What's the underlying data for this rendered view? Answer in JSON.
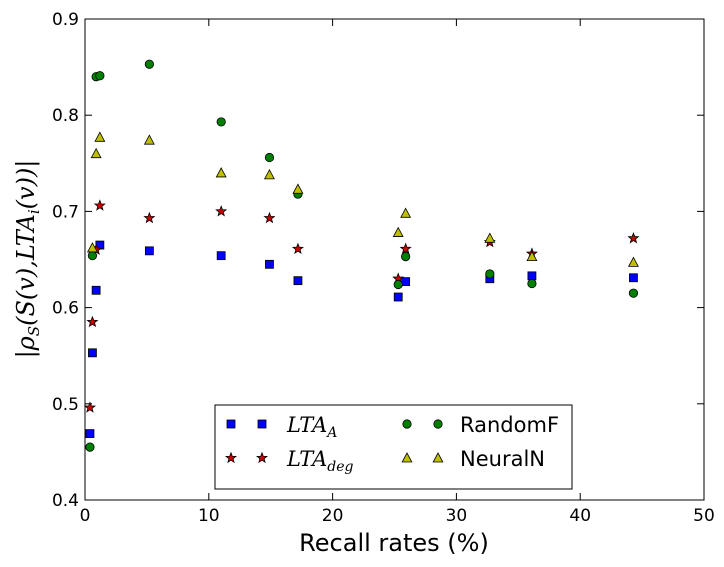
{
  "chart_data": {
    "type": "scatter",
    "title": "",
    "xlabel": "Recall rates (%)",
    "ylabel": "|ρS(S(v), LTAi(v))|",
    "ylabel_parts": {
      "bar_left": "|",
      "rho": "ρ",
      "rho_sub": "S",
      "open": "(",
      "S": "S",
      "v1": "(v),",
      "lta": "LTA",
      "lta_sub": "i",
      "v2": "(v))",
      "bar_right": "|"
    },
    "xlim": [
      0,
      50
    ],
    "ylim": [
      0.4,
      0.9
    ],
    "x_ticks": [
      0,
      10,
      20,
      30,
      40,
      50
    ],
    "y_ticks": [
      0.4,
      0.5,
      0.6,
      0.7,
      0.8,
      0.9
    ],
    "x_tick_labels": [
      "0",
      "10",
      "20",
      "30",
      "40",
      "50"
    ],
    "y_tick_labels": [
      "0.4",
      "0.5",
      "0.6",
      "0.7",
      "0.8",
      "0.9"
    ],
    "legend_position": "lower-center",
    "series": [
      {
        "name": "LTA_A",
        "label_main": "LTA",
        "label_sub": "A",
        "math": true,
        "marker": "square",
        "color": "#0000ff",
        "x": [
          0.4,
          0.6,
          0.9,
          1.2,
          5.2,
          11.0,
          14.9,
          17.2,
          25.3,
          25.9,
          32.7,
          36.1,
          44.3
        ],
        "y": [
          0.469,
          0.553,
          0.618,
          0.665,
          0.659,
          0.654,
          0.645,
          0.628,
          0.611,
          0.627,
          0.63,
          0.633,
          0.631
        ]
      },
      {
        "name": "LTA_deg",
        "label_main": "LTA",
        "label_sub": "deg",
        "math": true,
        "marker": "star",
        "color": "#cc0000",
        "x": [
          0.4,
          0.6,
          0.9,
          1.2,
          5.2,
          11.0,
          14.9,
          17.2,
          25.3,
          25.9,
          32.7,
          36.1,
          44.3
        ],
        "y": [
          0.496,
          0.585,
          0.66,
          0.706,
          0.693,
          0.7,
          0.693,
          0.661,
          0.63,
          0.661,
          0.668,
          0.656,
          0.672
        ]
      },
      {
        "name": "RandomF",
        "label_main": "RandomF",
        "label_sub": "",
        "math": false,
        "marker": "circle",
        "color": "#008000",
        "x": [
          0.4,
          0.6,
          0.9,
          1.2,
          5.2,
          11.0,
          14.9,
          17.2,
          25.3,
          25.9,
          32.7,
          36.1,
          44.3
        ],
        "y": [
          0.455,
          0.654,
          0.84,
          0.841,
          0.853,
          0.793,
          0.756,
          0.718,
          0.624,
          0.653,
          0.635,
          0.625,
          0.615
        ]
      },
      {
        "name": "NeuralN",
        "label_main": "NeuralN",
        "label_sub": "",
        "math": false,
        "marker": "triangle",
        "color": "#bfbf00",
        "x": [
          0.6,
          0.9,
          1.2,
          5.2,
          11.0,
          14.9,
          17.2,
          25.3,
          25.9,
          32.7,
          36.1,
          44.3
        ],
        "y": [
          0.662,
          0.76,
          0.777,
          0.774,
          0.74,
          0.738,
          0.723,
          0.678,
          0.698,
          0.672,
          0.653,
          0.647
        ]
      }
    ]
  }
}
